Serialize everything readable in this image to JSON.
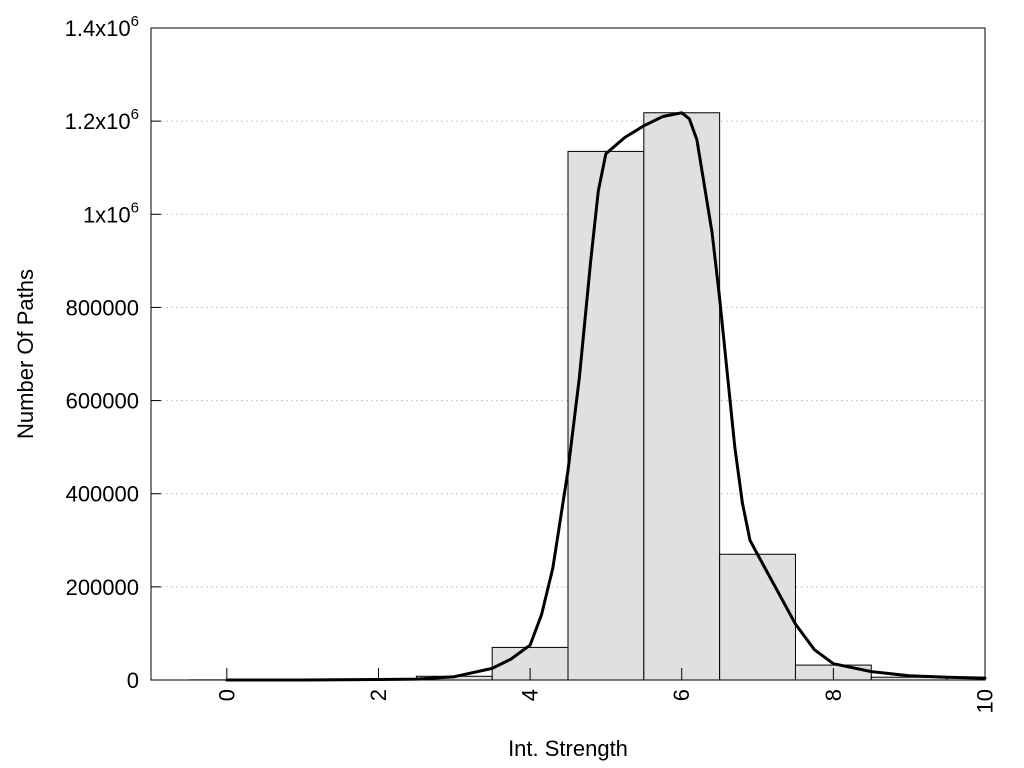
{
  "chart_data": {
    "type": "bar",
    "title": "",
    "xlabel": "Int. Strength",
    "ylabel": "Number Of Paths",
    "xlim": [
      -1,
      10
    ],
    "ylim": [
      0,
      1400000
    ],
    "grid": "horizontal-dotted",
    "x_ticks": [
      {
        "value": 0,
        "label": "0"
      },
      {
        "value": 2,
        "label": "2"
      },
      {
        "value": 4,
        "label": "4"
      },
      {
        "value": 6,
        "label": "6"
      },
      {
        "value": 8,
        "label": "8"
      },
      {
        "value": 10,
        "label": "10"
      }
    ],
    "y_ticks": [
      {
        "value": 0,
        "label": "0"
      },
      {
        "value": 200000,
        "label": "200000"
      },
      {
        "value": 400000,
        "label": "400000"
      },
      {
        "value": 600000,
        "label": "600000"
      },
      {
        "value": 800000,
        "label": "800000"
      },
      {
        "value": 1000000,
        "label": "1x10",
        "sup": "6"
      },
      {
        "value": 1200000,
        "label": "1.2x10",
        "sup": "6"
      },
      {
        "value": 1400000,
        "label": "1.4x10",
        "sup": "6"
      }
    ],
    "histogram": {
      "bin_width": 1,
      "bins": [
        {
          "center": 0,
          "value": 300
        },
        {
          "center": 1,
          "value": 500
        },
        {
          "center": 2,
          "value": 1500
        },
        {
          "center": 3,
          "value": 8000
        },
        {
          "center": 4,
          "value": 70000
        },
        {
          "center": 5,
          "value": 1135000
        },
        {
          "center": 6,
          "value": 1218000
        },
        {
          "center": 7,
          "value": 270000
        },
        {
          "center": 8,
          "value": 32000
        },
        {
          "center": 9,
          "value": 6000
        }
      ],
      "fill_color": "#e0e0e0",
      "edge_color": "#000000"
    },
    "curve": {
      "color": "#000000",
      "points": [
        [
          0,
          0
        ],
        [
          1,
          0
        ],
        [
          1.5,
          500
        ],
        [
          2,
          1000
        ],
        [
          2.5,
          2000
        ],
        [
          3,
          7000
        ],
        [
          3.5,
          25000
        ],
        [
          3.75,
          45000
        ],
        [
          4,
          75000
        ],
        [
          4.15,
          140000
        ],
        [
          4.3,
          240000
        ],
        [
          4.5,
          450000
        ],
        [
          4.65,
          650000
        ],
        [
          4.8,
          900000
        ],
        [
          4.9,
          1050000
        ],
        [
          5,
          1130000
        ],
        [
          5.25,
          1165000
        ],
        [
          5.5,
          1190000
        ],
        [
          5.75,
          1210000
        ],
        [
          6,
          1218000
        ],
        [
          6.1,
          1205000
        ],
        [
          6.2,
          1160000
        ],
        [
          6.3,
          1060000
        ],
        [
          6.4,
          960000
        ],
        [
          6.5,
          820000
        ],
        [
          6.6,
          660000
        ],
        [
          6.7,
          500000
        ],
        [
          6.8,
          380000
        ],
        [
          6.9,
          300000
        ],
        [
          7,
          270000
        ],
        [
          7.25,
          195000
        ],
        [
          7.5,
          120000
        ],
        [
          7.75,
          65000
        ],
        [
          8,
          35000
        ],
        [
          8.5,
          18000
        ],
        [
          9,
          9000
        ],
        [
          9.5,
          6000
        ],
        [
          10,
          4000
        ]
      ]
    }
  }
}
